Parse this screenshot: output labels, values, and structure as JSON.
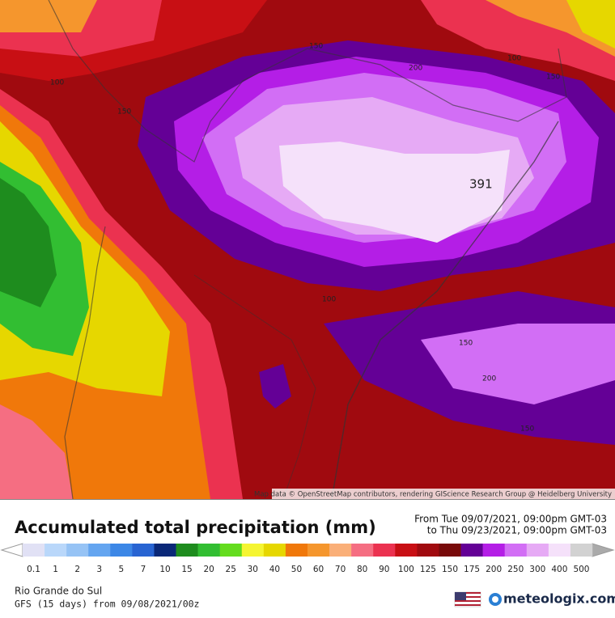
{
  "map": {
    "contour_labels": [
      "150",
      "100",
      "150",
      "200",
      "100",
      "150",
      "100",
      "150",
      "200",
      "150",
      "391"
    ],
    "attribution": "Map data © OpenStreetMap contributors, rendering GIScience Research Group @ Heidelberg University"
  },
  "header": {
    "title": "Accumulated total precipitation (mm)",
    "period_from": "From Tue 09/07/2021, 09:00pm GMT-03",
    "period_to": "to Thu 09/23/2021, 09:00pm GMT-03"
  },
  "legend": {
    "labels": [
      "0.1",
      "1",
      "2",
      "3",
      "5",
      "7",
      "10",
      "15",
      "20",
      "25",
      "30",
      "40",
      "50",
      "60",
      "70",
      "80",
      "90",
      "100",
      "125",
      "150",
      "175",
      "200",
      "250",
      "300",
      "400",
      "500"
    ],
    "colors": [
      "#e1e1f5",
      "#b9d7fa",
      "#96c3f5",
      "#64a5f0",
      "#3c87e6",
      "#2864d2",
      "#0a2878",
      "#1e8c1e",
      "#32be32",
      "#64dc1e",
      "#f5f532",
      "#e6d700",
      "#f0780a",
      "#f5962d",
      "#faaf78",
      "#f56e82",
      "#eb3250",
      "#c80f14",
      "#a00a0f",
      "#780a0a",
      "#640096",
      "#b41ee6",
      "#d26ef5",
      "#e6aaf5",
      "#f5e1fa",
      "#d2d2d2"
    ]
  },
  "footer": {
    "region": "Rio Grande do Sul",
    "model": "GFS (15 days) from 09/08/2021/00z",
    "brand": "meteologix.com"
  }
}
